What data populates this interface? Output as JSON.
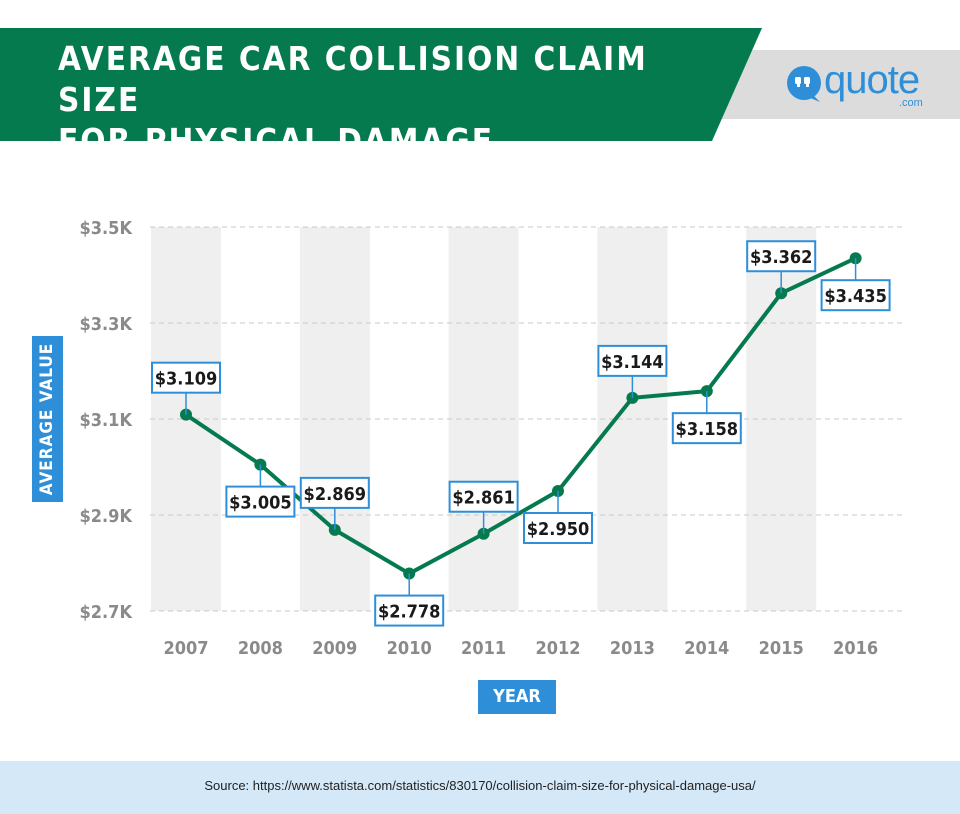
{
  "header": {
    "title_line1": "AVERAGE CAR COLLISION CLAIM SIZE",
    "title_line2": "FOR PHYSICAL DAMAGE"
  },
  "logo": {
    "text": "quote",
    "sub": ".com"
  },
  "footer": {
    "source": "Source: https://www.statista.com/statistics/830170/collision-claim-size-for-physical-damage-usa/"
  },
  "colors": {
    "green": "#067a4f",
    "blue": "#2e8fd8",
    "stripe": "#efefef",
    "grid": "#c8c8c8",
    "tick": "#8a8a8a"
  },
  "chart_data": {
    "type": "line",
    "title": "AVERAGE CAR COLLISION CLAIM SIZE FOR PHYSICAL DAMAGE",
    "xlabel": "YEAR",
    "ylabel": "AVERAGE VALUE",
    "ylim": [
      2.7,
      3.5
    ],
    "yticks": [
      {
        "value": 2.7,
        "label": "$2.7K"
      },
      {
        "value": 2.9,
        "label": "$2.9K"
      },
      {
        "value": 3.1,
        "label": "$3.1K"
      },
      {
        "value": 3.3,
        "label": "$3.3K"
      },
      {
        "value": 3.5,
        "label": "$3.5K"
      }
    ],
    "categories": [
      "2007",
      "2008",
      "2009",
      "2010",
      "2011",
      "2012",
      "2013",
      "2014",
      "2015",
      "2016"
    ],
    "values": [
      3.109,
      3.005,
      2.869,
      2.778,
      2.861,
      2.95,
      3.144,
      3.158,
      3.362,
      3.435
    ],
    "data_labels": [
      "$3.109",
      "$3.005",
      "$2.869",
      "$2.778",
      "$2.861",
      "$2.950",
      "$3.144",
      "$3.158",
      "$3.362",
      "$3.435"
    ],
    "label_positions": [
      "above",
      "below",
      "above",
      "below",
      "above",
      "below",
      "above",
      "below",
      "above",
      "below"
    ],
    "shaded_columns": [
      "2007",
      "2009",
      "2011",
      "2013",
      "2015"
    ],
    "grid": true
  }
}
